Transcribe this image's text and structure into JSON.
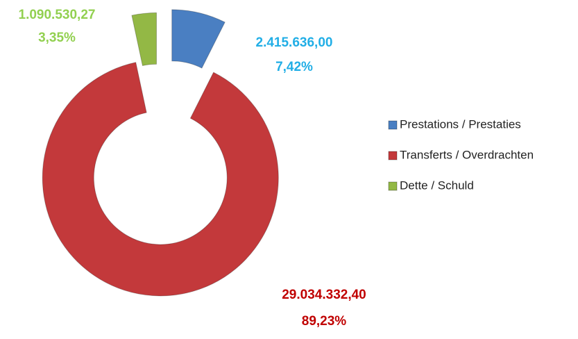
{
  "chart_data": {
    "type": "donut",
    "categories": [
      "Prestations / Prestaties",
      "Transferts / Overdrachten",
      "Dette / Schuld"
    ],
    "values": [
      2415636.0,
      29034332.4,
      1090530.27
    ],
    "value_labels": [
      "2.415.636,00",
      "29.034.332,40",
      "1.090.530,27"
    ],
    "percentages": [
      7.42,
      89.23,
      3.35
    ],
    "percent_labels": [
      "7,42%",
      "89,23%",
      "3,35%"
    ],
    "colors": [
      "#4a7fc2",
      "#c3393b",
      "#93b845"
    ],
    "label_colors": [
      "#21aee6",
      "#c00000",
      "#92d050"
    ],
    "legend": "right"
  }
}
